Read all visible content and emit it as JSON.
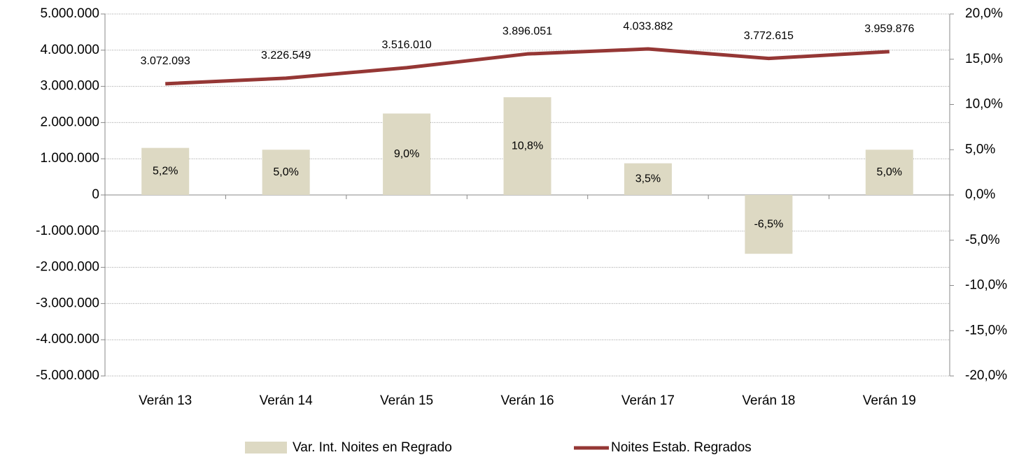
{
  "chart_data": {
    "type": "combo",
    "categories": [
      "Verán 13",
      "Verán 14",
      "Verán 15",
      "Verán 16",
      "Verán 17",
      "Verán 18",
      "Verán 19"
    ],
    "series": [
      {
        "name": "Var. Int. Noites en Regrado",
        "type": "bar",
        "axis": "y2",
        "color": "#ddd9c3",
        "values": [
          5.2,
          5.0,
          9.0,
          10.8,
          3.5,
          -6.5,
          5.0
        ],
        "value_labels": [
          "5,2%",
          "5,0%",
          "9,0%",
          "10,8%",
          "3,5%",
          "-6,5%",
          "5,0%"
        ]
      },
      {
        "name": "Noites Estab. Regrados",
        "type": "line",
        "axis": "y",
        "color": "#953735",
        "values": [
          3072093,
          3226549,
          3516010,
          3896051,
          4033882,
          3772615,
          3959876
        ],
        "value_labels": [
          "3.072.093",
          "3.226.549",
          "3.516.010",
          "3.896.051",
          "4.033.882",
          "3.772.615",
          "3.959.876"
        ]
      }
    ],
    "ylim": [
      -5000000,
      5000000
    ],
    "yticks": [
      {
        "value": 5000000,
        "label": "5.000.000"
      },
      {
        "value": 4000000,
        "label": "4.000.000"
      },
      {
        "value": 3000000,
        "label": "3.000.000"
      },
      {
        "value": 2000000,
        "label": "2.000.000"
      },
      {
        "value": 1000000,
        "label": "1.000.000"
      },
      0,
      {
        "value": -1000000,
        "label": "-1.000.000"
      },
      {
        "value": -2000000,
        "label": "-2.000.000"
      },
      {
        "value": -3000000,
        "label": "-3.000.000"
      },
      {
        "value": -4000000,
        "label": "-4.000.000"
      },
      {
        "value": -5000000,
        "label": "-5.000.000"
      }
    ],
    "y2lim": [
      -20,
      20
    ],
    "y2ticks": [
      {
        "value": 20,
        "label": "20,0%"
      },
      {
        "value": 15,
        "label": "15,0%"
      },
      {
        "value": 10,
        "label": "10,0%"
      },
      {
        "value": 5,
        "label": "5,0%"
      },
      {
        "value": 0,
        "label": "0,0%"
      },
      {
        "value": -5,
        "label": "-5,0%"
      },
      {
        "value": -10,
        "label": "-10,0%"
      },
      {
        "value": -15,
        "label": "-15,0%"
      },
      {
        "value": -20,
        "label": "-20,0%"
      }
    ],
    "grid": true,
    "legend": "bottom"
  }
}
